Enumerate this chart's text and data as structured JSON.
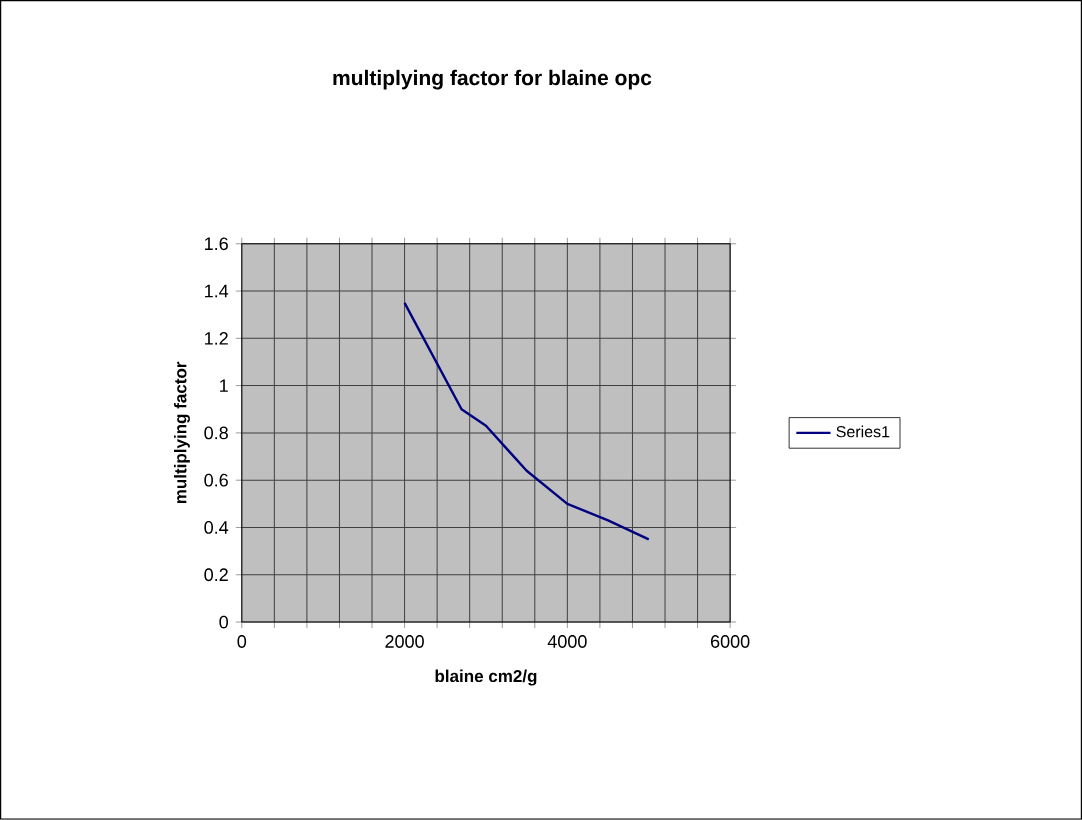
{
  "chart_data": {
    "type": "line",
    "title": "multiplying factor for blaine opc",
    "xlabel": "blaine cm2/g",
    "ylabel": "multiplying factor",
    "x": [
      2000,
      2700,
      3000,
      3500,
      4000,
      4500,
      5000
    ],
    "series": [
      {
        "name": "Series1",
        "color": "#000080",
        "values": [
          1.35,
          0.9,
          0.83,
          0.64,
          0.5,
          0.43,
          0.35
        ]
      }
    ],
    "xlim": [
      0,
      6000
    ],
    "ylim": [
      0,
      1.6
    ],
    "xticks": [
      0,
      {
        "value": 400,
        "label": null
      },
      {
        "value": 800,
        "label": null
      },
      {
        "value": 1200,
        "label": null
      },
      {
        "value": 1600,
        "label": null
      },
      2000,
      {
        "value": 2400,
        "label": null
      },
      {
        "value": 2800,
        "label": null
      },
      {
        "value": 3200,
        "label": null
      },
      {
        "value": 3600,
        "label": null
      },
      4000,
      {
        "value": 4400,
        "label": null
      },
      {
        "value": 4800,
        "label": null
      },
      {
        "value": 5200,
        "label": null
      },
      {
        "value": 5600,
        "label": null
      },
      6000
    ],
    "yticks": [
      0,
      0.2,
      0.4,
      0.6,
      0.8,
      1,
      1.2,
      1.4,
      1.6
    ],
    "grid": true,
    "legend": "right",
    "marker": "none",
    "line_style": "solid"
  }
}
